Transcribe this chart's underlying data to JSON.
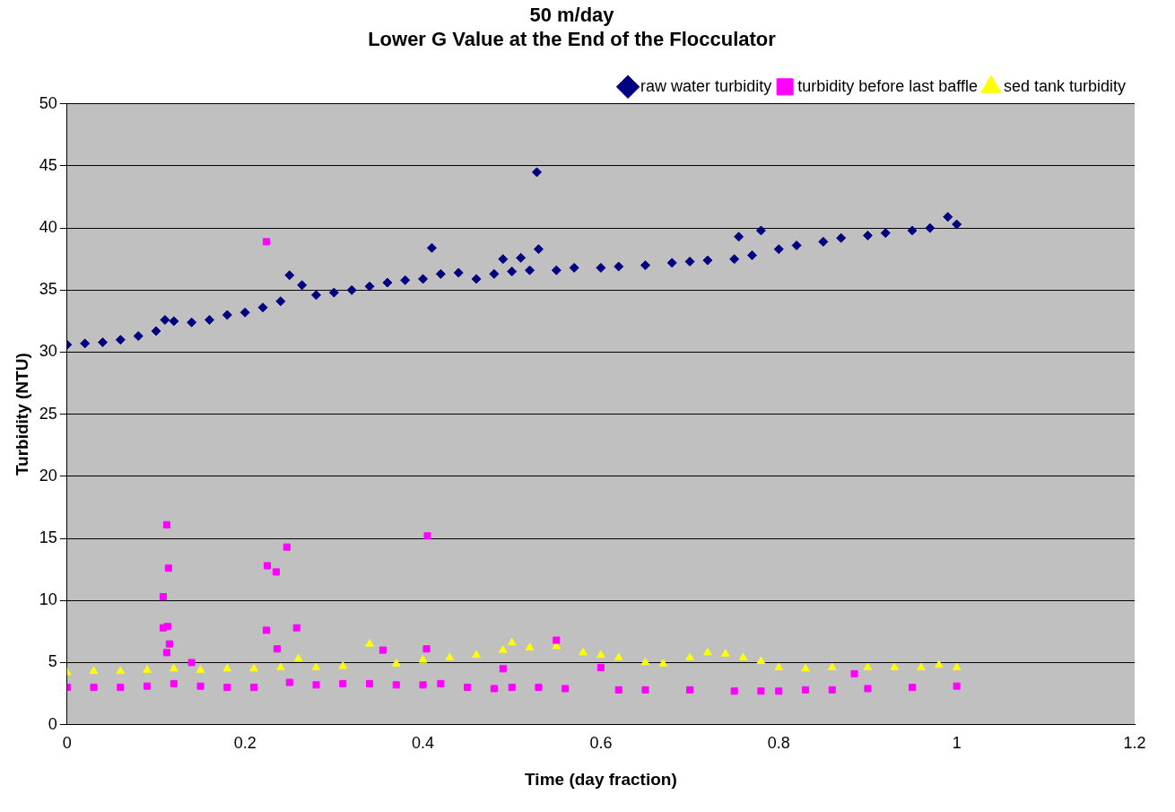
{
  "chart_data": {
    "type": "scatter",
    "title": [
      "50 m/day",
      "Lower G Value at the End of the Flocculator"
    ],
    "xlabel": "Time (day fraction)",
    "ylabel": "Turbidity (NTU)",
    "xlim": [
      0,
      1.2
    ],
    "xticks": [
      0,
      0.2,
      0.4,
      0.6,
      0.8,
      1,
      1.2
    ],
    "ylim": [
      0,
      50
    ],
    "yticks": [
      0,
      5,
      10,
      15,
      20,
      25,
      30,
      35,
      40,
      45,
      50
    ],
    "grid": "y",
    "legend": "top right",
    "series": [
      {
        "name": "raw water turbidity",
        "color": "#000080",
        "marker": "diamond",
        "x": [
          0,
          0.02,
          0.04,
          0.06,
          0.08,
          0.1,
          0.11,
          0.12,
          0.14,
          0.16,
          0.18,
          0.2,
          0.22,
          0.24,
          0.25,
          0.264,
          0.28,
          0.3,
          0.32,
          0.34,
          0.36,
          0.38,
          0.4,
          0.41,
          0.42,
          0.44,
          0.46,
          0.48,
          0.49,
          0.5,
          0.51,
          0.52,
          0.528,
          0.53,
          0.55,
          0.57,
          0.6,
          0.62,
          0.65,
          0.68,
          0.7,
          0.72,
          0.75,
          0.755,
          0.77,
          0.78,
          0.8,
          0.82,
          0.85,
          0.87,
          0.9,
          0.92,
          0.95,
          0.97,
          0.99,
          1
        ],
        "values": [
          30.6,
          30.7,
          30.8,
          31.0,
          31.3,
          31.7,
          32.6,
          32.5,
          32.4,
          32.6,
          33.0,
          33.2,
          33.6,
          34.1,
          36.2,
          35.4,
          34.6,
          34.8,
          35.0,
          35.3,
          35.6,
          35.8,
          35.9,
          38.4,
          36.3,
          36.4,
          35.9,
          36.3,
          37.5,
          36.5,
          37.6,
          36.6,
          44.5,
          38.3,
          36.6,
          36.8,
          36.8,
          36.9,
          37.0,
          37.2,
          37.3,
          37.4,
          37.5,
          39.3,
          37.8,
          39.8,
          38.3,
          38.6,
          38.9,
          39.2,
          39.4,
          39.6,
          39.8,
          40.0,
          40.9,
          40.3
        ]
      },
      {
        "name": "turbidity before last baffle",
        "color": "#ff00ff",
        "marker": "square",
        "x": [
          0,
          0.03,
          0.06,
          0.09,
          0.108,
          0.108,
          0.112,
          0.112,
          0.113,
          0.114,
          0.115,
          0.12,
          0.14,
          0.15,
          0.18,
          0.21,
          0.224,
          0.224,
          0.225,
          0.235,
          0.236,
          0.247,
          0.25,
          0.258,
          0.28,
          0.31,
          0.34,
          0.355,
          0.37,
          0.4,
          0.404,
          0.405,
          0.42,
          0.45,
          0.48,
          0.49,
          0.5,
          0.53,
          0.55,
          0.56,
          0.6,
          0.62,
          0.65,
          0.7,
          0.75,
          0.78,
          0.8,
          0.83,
          0.86,
          0.885,
          0.9,
          0.95,
          1
        ],
        "values": [
          3.0,
          3.0,
          3.0,
          3.1,
          10.3,
          7.8,
          16.1,
          5.8,
          7.9,
          12.6,
          6.5,
          3.3,
          5.0,
          3.1,
          3.0,
          3.0,
          38.9,
          7.6,
          12.8,
          12.3,
          6.1,
          14.3,
          3.4,
          7.8,
          3.2,
          3.3,
          3.3,
          6.0,
          3.2,
          3.2,
          6.1,
          15.2,
          3.3,
          3.0,
          2.9,
          4.5,
          3.0,
          3.0,
          6.8,
          2.9,
          4.6,
          2.8,
          2.8,
          2.8,
          2.7,
          2.7,
          2.7,
          2.8,
          2.8,
          4.1,
          2.9,
          3.0,
          3.1
        ]
      },
      {
        "name": "sed tank turbidity",
        "color": "#ffff00",
        "marker": "triangle",
        "x": [
          0,
          0.03,
          0.06,
          0.09,
          0.12,
          0.15,
          0.18,
          0.21,
          0.24,
          0.26,
          0.28,
          0.31,
          0.34,
          0.37,
          0.4,
          0.43,
          0.46,
          0.49,
          0.5,
          0.52,
          0.55,
          0.58,
          0.6,
          0.62,
          0.65,
          0.67,
          0.7,
          0.72,
          0.74,
          0.76,
          0.78,
          0.8,
          0.83,
          0.86,
          0.9,
          0.93,
          0.96,
          0.98,
          1
        ],
        "values": [
          4.2,
          4.3,
          4.3,
          4.4,
          4.5,
          4.4,
          4.5,
          4.5,
          4.6,
          5.3,
          4.6,
          4.7,
          6.5,
          4.9,
          5.2,
          5.4,
          5.6,
          6.0,
          6.6,
          6.2,
          6.3,
          5.8,
          5.6,
          5.4,
          5.0,
          4.9,
          5.4,
          5.8,
          5.7,
          5.4,
          5.1,
          4.6,
          4.5,
          4.6,
          4.6,
          4.6,
          4.6,
          4.8,
          4.6
        ]
      }
    ]
  }
}
